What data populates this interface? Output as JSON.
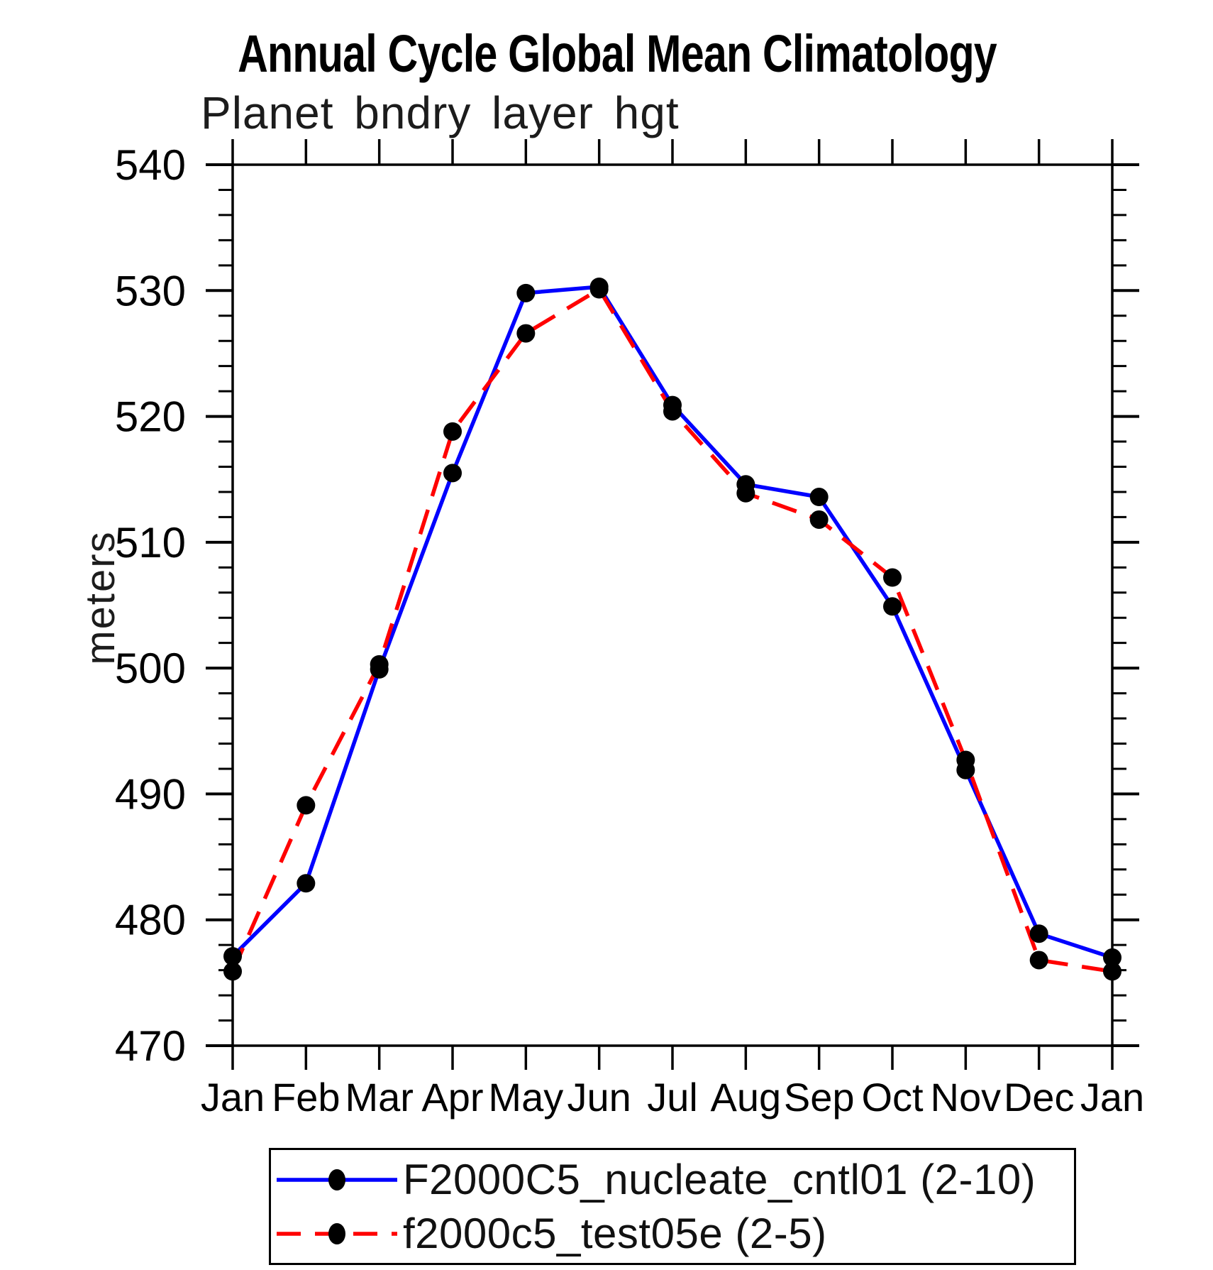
{
  "page_title": "Annual Cycle Global Mean Climatology",
  "chart_data": {
    "type": "line",
    "title": "Annual Cycle Global Mean Climatology",
    "subtitle": "Planet bndry layer hgt",
    "ylabel": "meters",
    "xlabel": "",
    "x_tick_labels": [
      "Jan",
      "Feb",
      "Mar",
      "Apr",
      "May",
      "Jun",
      "Jul",
      "Aug",
      "Sep",
      "Oct",
      "Nov",
      "Dec",
      "Jan"
    ],
    "ylim": [
      470,
      540
    ],
    "y_major_step": 10,
    "y_minor_step": 2,
    "y_major_tick_labels": [
      "470",
      "480",
      "490",
      "500",
      "510",
      "520",
      "530",
      "540"
    ],
    "grid": false,
    "legend_position": "bottom",
    "frame_color": "#000000",
    "marker_color": "#000000",
    "series": [
      {
        "name": "F2000C5_nucleate_cntl01 (2-10)",
        "color": "#0000ff",
        "style": "solid",
        "values": [
          477.1,
          482.9,
          499.9,
          515.5,
          529.8,
          530.3,
          520.9,
          514.6,
          513.6,
          504.9,
          491.9,
          478.9,
          477.0
        ]
      },
      {
        "name": "f2000c5_test05e (2-5)",
        "color": "#ff0000",
        "style": "dashed",
        "values": [
          475.9,
          489.1,
          500.3,
          518.8,
          526.6,
          530.1,
          520.4,
          513.9,
          511.8,
          507.2,
          492.7,
          476.8,
          475.9
        ]
      }
    ]
  }
}
